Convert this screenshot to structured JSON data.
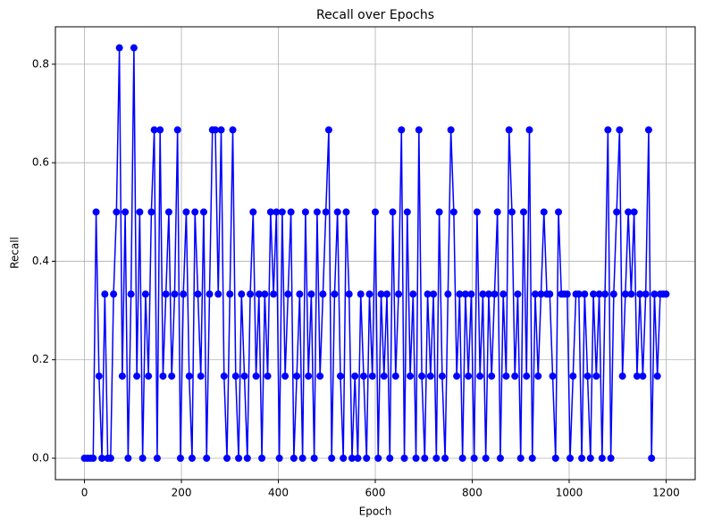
{
  "chart_data": {
    "type": "line",
    "title": "Recall over Epochs",
    "x_label": "Epoch",
    "y_label": "Recall",
    "x": [
      0,
      6,
      12,
      18,
      24,
      30,
      36,
      42,
      48,
      54,
      60,
      66,
      72,
      78,
      84,
      90,
      96,
      102,
      108,
      114,
      120,
      126,
      132,
      138,
      144,
      150,
      156,
      162,
      168,
      174,
      180,
      186,
      192,
      198,
      204,
      210,
      216,
      222,
      228,
      234,
      240,
      246,
      252,
      258,
      264,
      270,
      276,
      282,
      288,
      294,
      300,
      306,
      312,
      318,
      324,
      330,
      336,
      342,
      348,
      354,
      360,
      366,
      372,
      378,
      384,
      390,
      396,
      402,
      408,
      414,
      420,
      426,
      432,
      438,
      444,
      450,
      456,
      462,
      468,
      474,
      480,
      486,
      492,
      498,
      504,
      510,
      516,
      522,
      528,
      534,
      540,
      546,
      552,
      558,
      564,
      570,
      576,
      582,
      588,
      594,
      600,
      606,
      612,
      618,
      624,
      630,
      636,
      642,
      648,
      654,
      660,
      666,
      672,
      678,
      684,
      690,
      696,
      702,
      708,
      714,
      720,
      726,
      732,
      738,
      744,
      750,
      756,
      762,
      768,
      774,
      780,
      786,
      792,
      798,
      804,
      810,
      816,
      822,
      828,
      834,
      840,
      846,
      852,
      858,
      864,
      870,
      876,
      882,
      888,
      894,
      900,
      906,
      912,
      918,
      924,
      930,
      936,
      942,
      948,
      954,
      960,
      966,
      972,
      978,
      984,
      990,
      996,
      1002,
      1008,
      1014,
      1020,
      1026,
      1032,
      1038,
      1044,
      1050,
      1056,
      1062,
      1068,
      1074,
      1080,
      1086,
      1092,
      1098,
      1104,
      1110,
      1116,
      1122,
      1128,
      1134,
      1140,
      1146,
      1152,
      1158,
      1164,
      1170,
      1176,
      1182,
      1188,
      1194,
      1200
    ],
    "series": [
      {
        "name": "Recall",
        "color": "#0000ff",
        "values": [
          0,
          0,
          0,
          0,
          0.5,
          0.1667,
          0,
          0.3333,
          0,
          0,
          0.3333,
          0.5,
          0.8333,
          0.1667,
          0.5,
          0,
          0.3333,
          0.8333,
          0.1667,
          0.5,
          0,
          0.3333,
          0.1667,
          0.5,
          0.6667,
          0,
          0.6667,
          0.1667,
          0.3333,
          0.5,
          0.1667,
          0.3333,
          0.6667,
          0,
          0.3333,
          0.5,
          0.1667,
          0,
          0.5,
          0.3333,
          0.1667,
          0.5,
          0,
          0.3333,
          0.6667,
          0.6667,
          0.3333,
          0.6667,
          0.1667,
          0,
          0.3333,
          0.6667,
          0.1667,
          0,
          0.3333,
          0.1667,
          0,
          0.3333,
          0.5,
          0.1667,
          0.3333,
          0,
          0.3333,
          0.1667,
          0.5,
          0.3333,
          0.5,
          0,
          0.5,
          0.1667,
          0.3333,
          0.5,
          0,
          0.1667,
          0.3333,
          0,
          0.5,
          0.1667,
          0.3333,
          0,
          0.5,
          0.1667,
          0.3333,
          0.5,
          0.6667,
          0,
          0.3333,
          0.5,
          0.1667,
          0,
          0.5,
          0.3333,
          0,
          0.1667,
          0,
          0.3333,
          0.1667,
          0,
          0.3333,
          0.1667,
          0.5,
          0,
          0.3333,
          0.1667,
          0.3333,
          0,
          0.5,
          0.1667,
          0.3333,
          0.6667,
          0,
          0.5,
          0.1667,
          0.3333,
          0,
          0.6667,
          0.1667,
          0,
          0.3333,
          0.1667,
          0.3333,
          0,
          0.5,
          0.1667,
          0,
          0.3333,
          0.6667,
          0.5,
          0.1667,
          0.3333,
          0,
          0.3333,
          0.1667,
          0.3333,
          0,
          0.5,
          0.1667,
          0.3333,
          0,
          0.3333,
          0.1667,
          0.3333,
          0.5,
          0,
          0.3333,
          0.1667,
          0.6667,
          0.5,
          0.1667,
          0.3333,
          0,
          0.5,
          0.1667,
          0.6667,
          0,
          0.3333,
          0.1667,
          0.3333,
          0.5,
          0.3333,
          0.3333,
          0.1667,
          0,
          0.5,
          0.3333,
          0.3333,
          0.3333,
          0,
          0.1667,
          0.3333,
          0.3333,
          0,
          0.3333,
          0.1667,
          0,
          0.3333,
          0.1667,
          0.3333,
          0,
          0.3333,
          0.6667,
          0,
          0.3333,
          0.5,
          0.6667,
          0.1667,
          0.3333,
          0.5,
          0.3333,
          0.5,
          0.1667,
          0.3333,
          0.1667,
          0.3333,
          0.6667,
          0,
          0.3333,
          0.1667,
          0.3333,
          0.3333,
          0.3333
        ]
      }
    ],
    "xlim": [
      -60,
      1260
    ],
    "xticks": [
      0,
      200,
      400,
      600,
      800,
      1000,
      1200
    ],
    "ylim": [
      -0.0435,
      0.876
    ],
    "yticks": [
      {
        "value": 0,
        "label": "0.0"
      },
      0.2,
      0.4,
      0.6,
      0.8
    ],
    "grid": true,
    "marker": "circle"
  }
}
